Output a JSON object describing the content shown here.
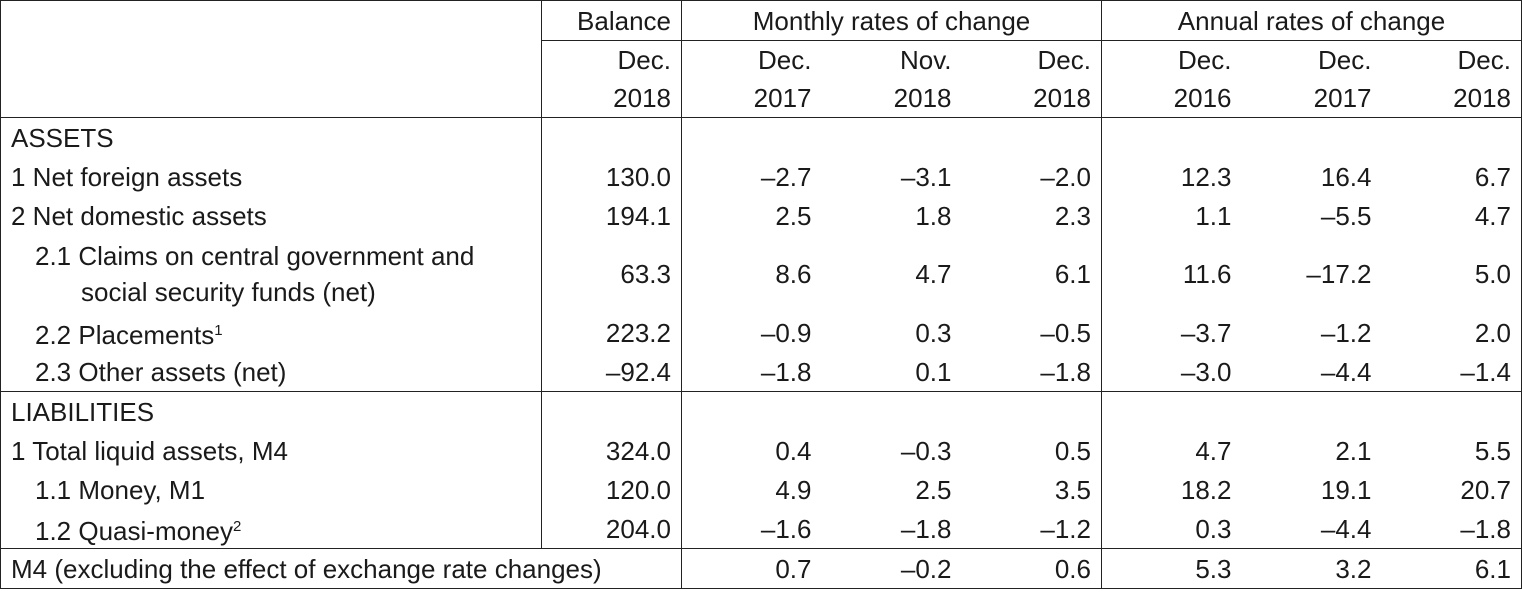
{
  "header": {
    "balance": "Balance",
    "monthly": "Monthly rates of change",
    "annual": "Annual rates of change",
    "cols": [
      {
        "m": "Dec.",
        "y": "2018"
      },
      {
        "m": "Dec.",
        "y": "2017"
      },
      {
        "m": "Nov.",
        "y": "2018"
      },
      {
        "m": "Dec.",
        "y": "2018"
      },
      {
        "m": "Dec.",
        "y": "2016"
      },
      {
        "m": "Dec.",
        "y": "2017"
      },
      {
        "m": "Dec.",
        "y": "2018"
      }
    ]
  },
  "sections": {
    "assets": "ASSETS",
    "liabilities": "LIABILITIES"
  },
  "rows": [
    {
      "label": "1 Net foreign assets",
      "vals": [
        "130.0",
        "–2.7",
        "–3.1",
        "–2.0",
        "12.3",
        "16.4",
        "6.7"
      ]
    },
    {
      "label": "2 Net domestic assets",
      "vals": [
        "194.1",
        "2.5",
        "1.8",
        "2.3",
        "1.1",
        "–5.5",
        "4.7"
      ]
    },
    {
      "label_line1": "2.1 Claims on central government and",
      "label_line2": "social security funds (net)",
      "vals": [
        "63.3",
        "8.6",
        "4.7",
        "6.1",
        "11.6",
        "–17.2",
        "5.0"
      ]
    },
    {
      "label": "2.2 Placements",
      "sup": "1",
      "vals": [
        "223.2",
        "–0.9",
        "0.3",
        "–0.5",
        "–3.7",
        "–1.2",
        "2.0"
      ]
    },
    {
      "label": "2.3 Other assets (net)",
      "vals": [
        "–92.4",
        "–1.8",
        "0.1",
        "–1.8",
        "–3.0",
        "–4.4",
        "–1.4"
      ]
    },
    {
      "label": "1 Total liquid assets, M4",
      "vals": [
        "324.0",
        "0.4",
        "–0.3",
        "0.5",
        "4.7",
        "2.1",
        "5.5"
      ]
    },
    {
      "label": "1.1 Money, M1",
      "vals": [
        "120.0",
        "4.9",
        "2.5",
        "3.5",
        "18.2",
        "19.1",
        "20.7"
      ]
    },
    {
      "label": "1.2 Quasi-money",
      "sup": "2",
      "vals": [
        "204.0",
        "–1.6",
        "–1.8",
        "–1.2",
        "0.3",
        "–4.4",
        "–1.8"
      ]
    },
    {
      "label": "M4 (excluding the effect of exchange rate changes)",
      "vals": [
        "0.7",
        "–0.2",
        "0.6",
        "5.3",
        "3.2",
        "6.1"
      ]
    }
  ]
}
